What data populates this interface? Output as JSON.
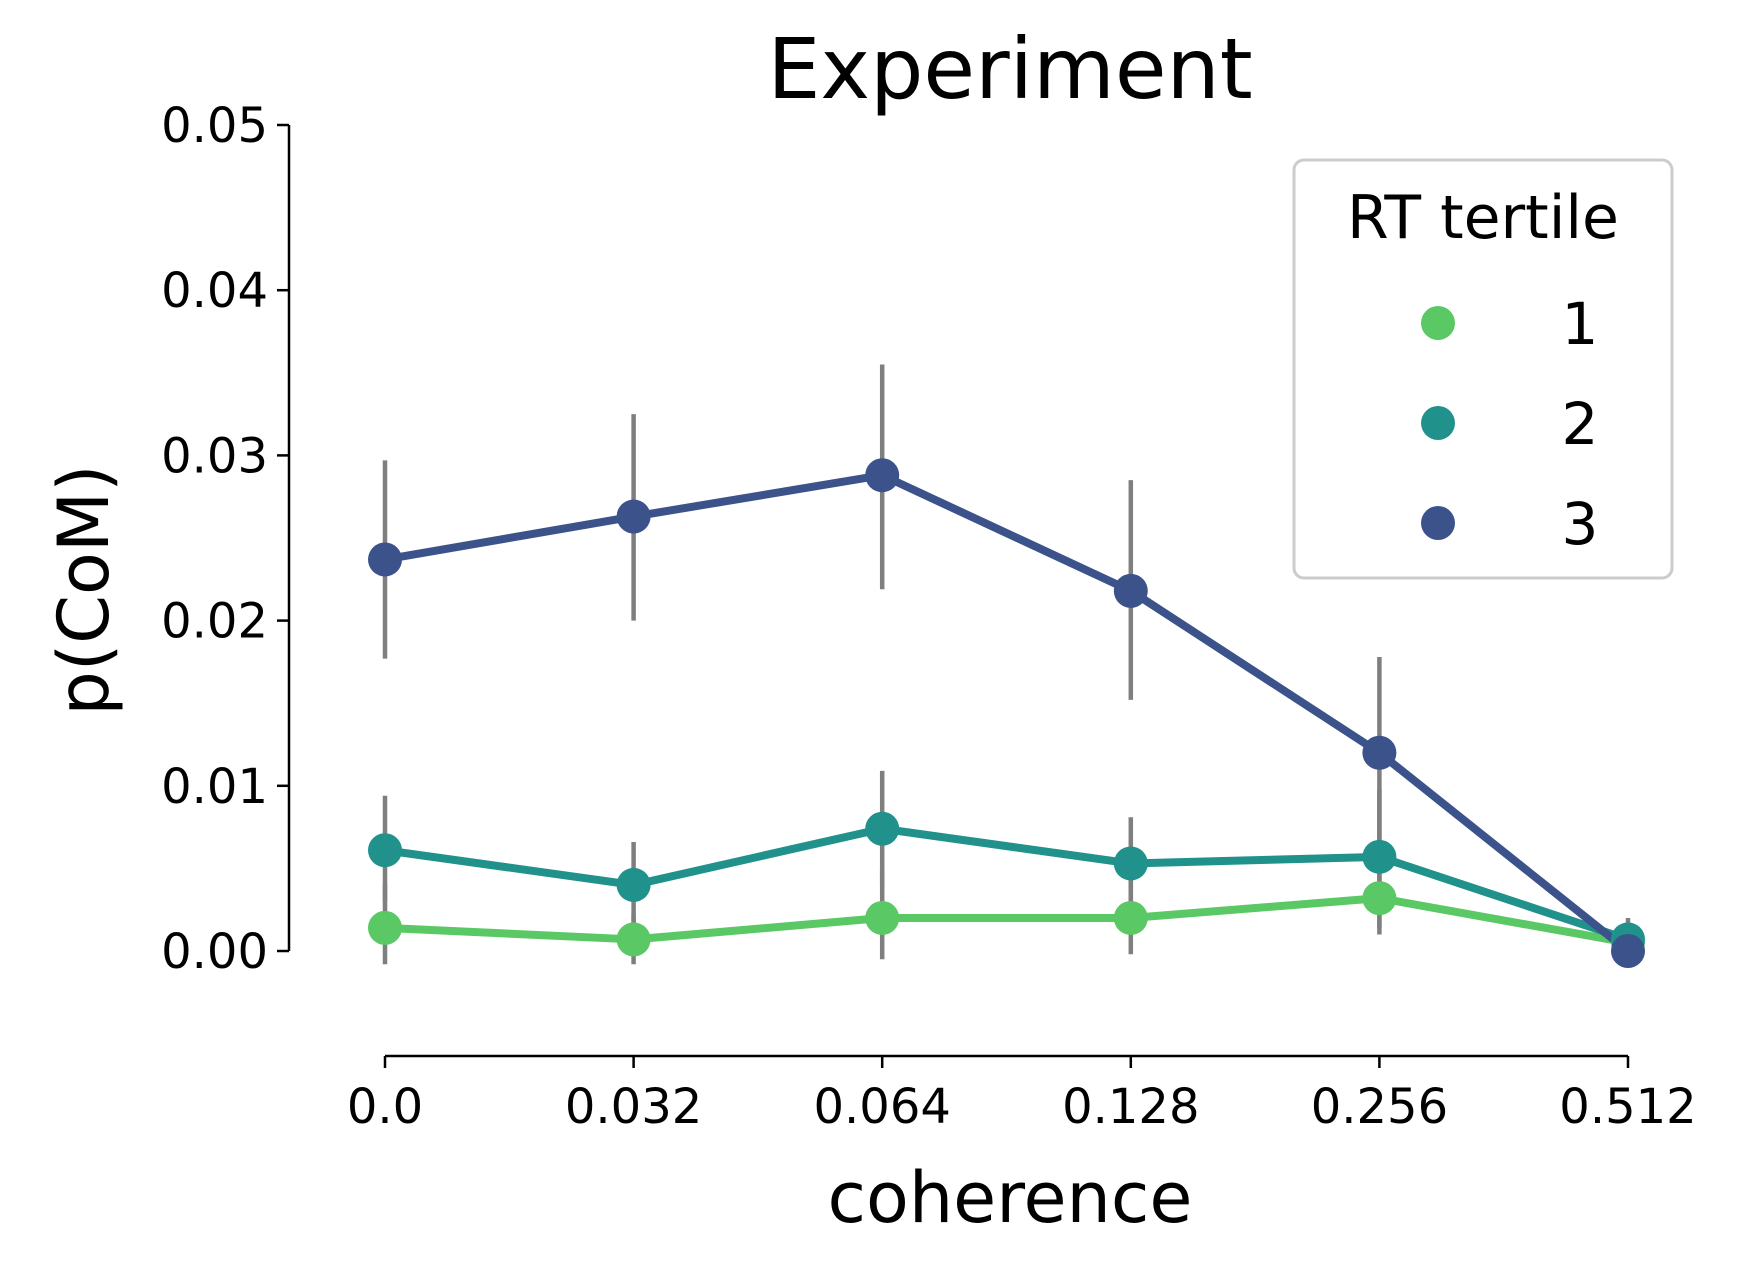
{
  "chart_data": {
    "type": "line",
    "title": "Experiment",
    "xlabel": "coherence",
    "ylabel": "p(CoM)",
    "categories": [
      "0.0",
      "0.032",
      "0.064",
      "0.128",
      "0.256",
      "0.512"
    ],
    "ylim": [
      -0.0065,
      0.05
    ],
    "yticks": [
      "0.00",
      "0.01",
      "0.02",
      "0.03",
      "0.04",
      "0.05"
    ],
    "grid": false,
    "legend": {
      "title": "RT tertile",
      "position": "top-right"
    },
    "series": [
      {
        "name": "1",
        "color": "#5ac864",
        "values": [
          0.0014,
          0.0007,
          0.002,
          0.002,
          0.0032,
          0.0005
        ],
        "err_low": [
          -0.0008,
          -0.0008,
          -0.0005,
          -0.0002,
          0.001,
          -0.0002
        ],
        "err_high": [
          0.004,
          0.0022,
          0.005,
          0.0048,
          0.006,
          0.0016
        ]
      },
      {
        "name": "2",
        "color": "#21918c",
        "values": [
          0.0061,
          0.004,
          0.0074,
          0.0053,
          0.0057,
          0.0007
        ],
        "err_low": [
          0.003,
          0.0016,
          0.004,
          0.0024,
          0.0014,
          -0.0002
        ],
        "err_high": [
          0.0094,
          0.0066,
          0.0109,
          0.0081,
          0.0098,
          0.002
        ]
      },
      {
        "name": "3",
        "color": "#3b528b",
        "values": [
          0.0237,
          0.0263,
          0.0288,
          0.0218,
          0.012,
          0.0
        ],
        "err_low": [
          0.0177,
          0.02,
          0.0219,
          0.0152,
          0.0052,
          0.0
        ],
        "err_high": [
          0.0297,
          0.0325,
          0.0355,
          0.0285,
          0.0178,
          0.0004
        ]
      }
    ]
  }
}
